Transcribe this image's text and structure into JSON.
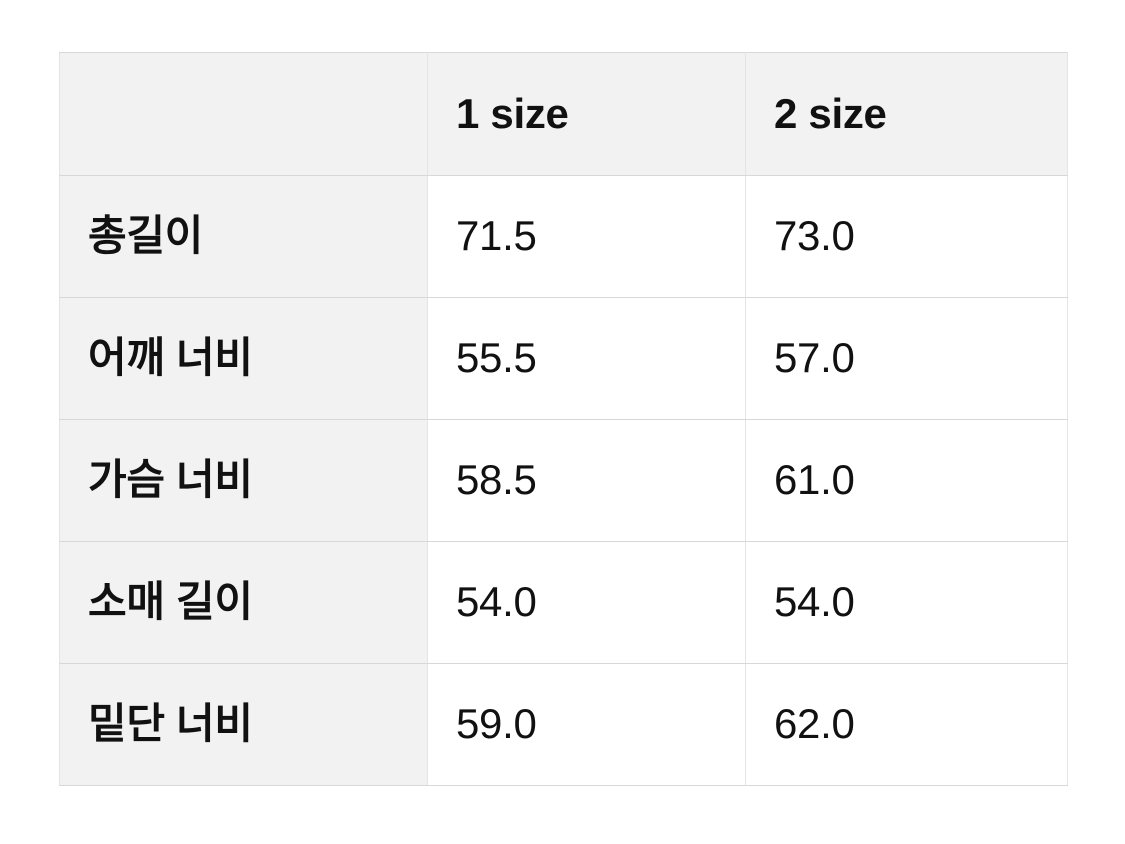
{
  "theme": {
    "page-bg": "#ffffff",
    "cell-bg": "#ffffff",
    "shaded-bg": "#f2f2f3",
    "border-h": "#d8d8d8",
    "border-v": "#e4e4e4",
    "text-color": "#111111"
  },
  "size_chart": {
    "columns": [
      "",
      "1 size",
      "2 size"
    ],
    "rows": [
      {
        "label": "총길이",
        "values": [
          "71.5",
          "73.0"
        ]
      },
      {
        "label": "어깨 너비",
        "values": [
          "55.5",
          "57.0"
        ]
      },
      {
        "label": "가슴 너비",
        "values": [
          "58.5",
          "61.0"
        ]
      },
      {
        "label": "소매 길이",
        "values": [
          "54.0",
          "54.0"
        ]
      },
      {
        "label": "밑단 너비",
        "values": [
          "59.0",
          "62.0"
        ]
      }
    ]
  }
}
